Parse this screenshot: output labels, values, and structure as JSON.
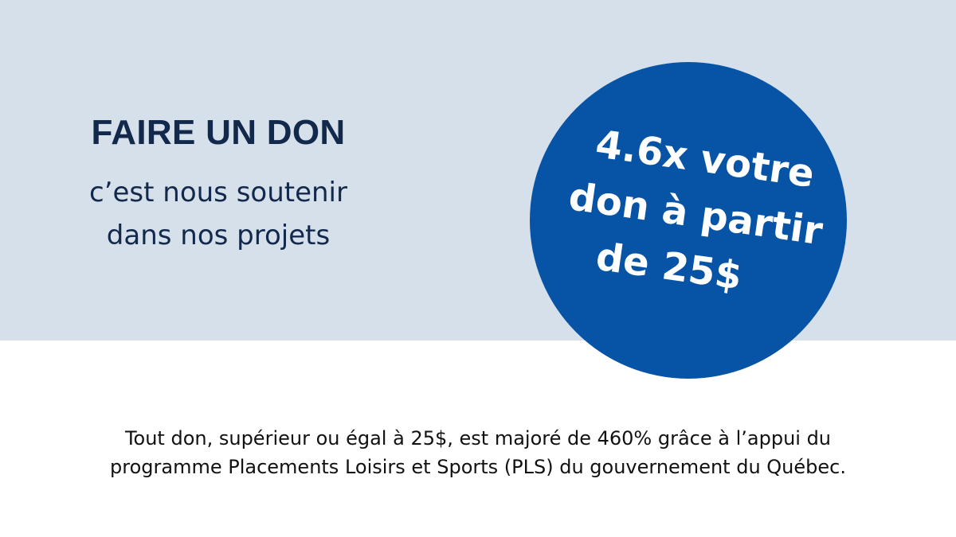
{
  "hero": {
    "headline": "FAIRE UN DON",
    "subline_1": "c’est nous soutenir",
    "subline_2": "dans nos projets"
  },
  "badge": {
    "line_1": "4.6x votre",
    "line_2": "don à partir",
    "line_3": "de 25$"
  },
  "footnote": {
    "line_1": "Tout don, supérieur ou égal à 25$, est majoré de 460% grâce à l’appui du",
    "line_2": "programme Placements Loisirs et Sports (PLS) du gouvernement du Québec."
  },
  "colors": {
    "band_background": "#d6e0ea",
    "badge_blue": "#0753a6",
    "headline_navy": "#13294b",
    "body_text": "#111111"
  }
}
